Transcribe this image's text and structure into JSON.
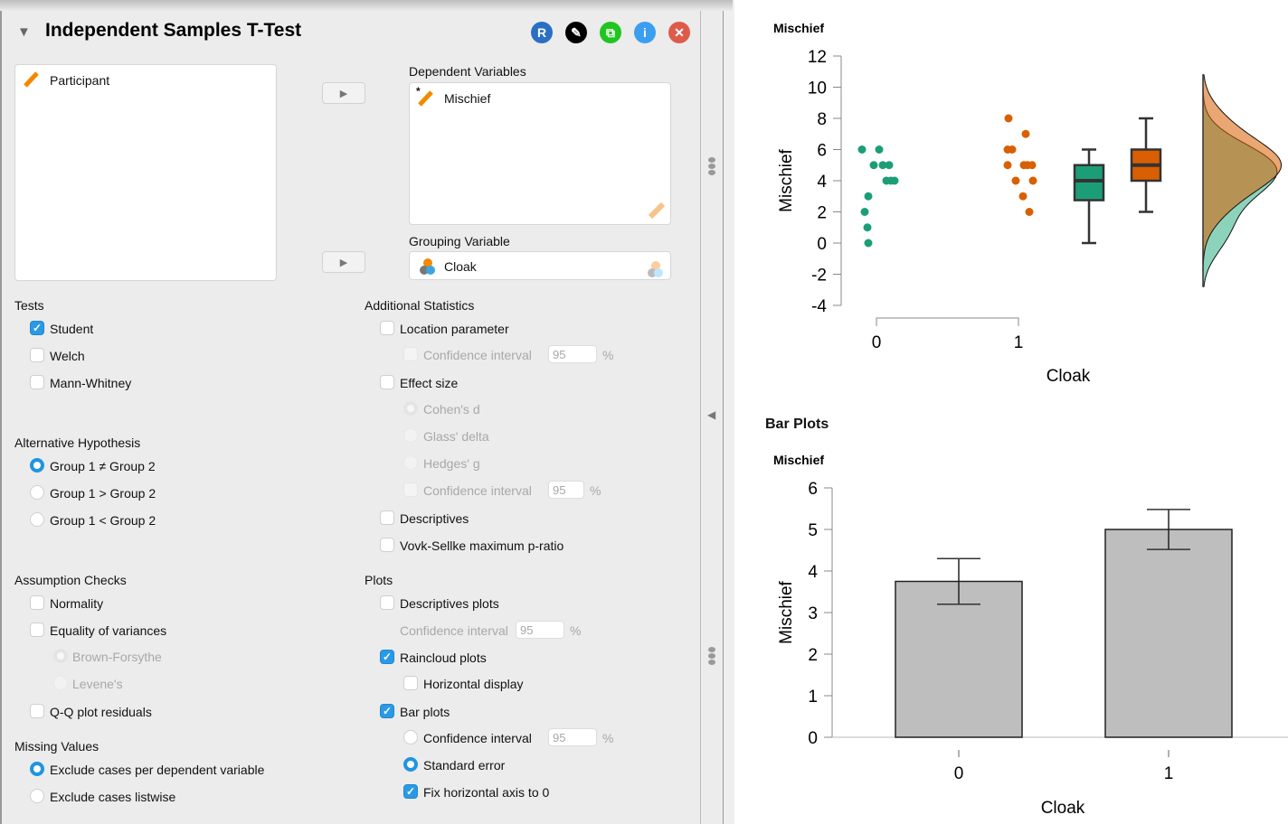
{
  "header": {
    "title": "Independent Samples T-Test",
    "buttons": [
      {
        "name": "r-syntax-button",
        "glyph": "R",
        "color": "#2a6fc4"
      },
      {
        "name": "edit-title-button",
        "glyph": "✎",
        "color": "#000000"
      },
      {
        "name": "duplicate-button",
        "glyph": "⧉",
        "color": "#20c520"
      },
      {
        "name": "info-button",
        "glyph": "i",
        "color": "#3b9ef0"
      },
      {
        "name": "close-button",
        "glyph": "✕",
        "color": "#de5b4a"
      }
    ]
  },
  "variables": {
    "available": [
      {
        "label": "Participant",
        "type": "scale"
      }
    ],
    "dependent_label": "Dependent Variables",
    "dependent": [
      {
        "label": "Mischief",
        "type": "scale"
      }
    ],
    "grouping_label": "Grouping Variable",
    "grouping": {
      "label": "Cloak",
      "type": "nominal"
    }
  },
  "tests": {
    "title": "Tests",
    "items": [
      {
        "label": "Student",
        "checked": true
      },
      {
        "label": "Welch",
        "checked": false
      },
      {
        "label": "Mann-Whitney",
        "checked": false
      }
    ]
  },
  "alt_hypothesis": {
    "title": "Alternative Hypothesis",
    "options": [
      "Group 1 ≠ Group 2",
      "Group 1 > Group 2",
      "Group 1 < Group 2"
    ],
    "selected": 0
  },
  "assumption_checks": {
    "title": "Assumption Checks",
    "normality": "Normality",
    "equality": "Equality of variances",
    "brown": "Brown-Forsythe",
    "levene": "Levene's",
    "qq": "Q-Q plot residuals"
  },
  "missing_values": {
    "title": "Missing Values",
    "options": [
      "Exclude cases per dependent variable",
      "Exclude cases listwise"
    ],
    "selected": 0
  },
  "additional": {
    "title": "Additional Statistics",
    "location": "Location parameter",
    "ci_label": "Confidence interval",
    "ci_value": "95",
    "pct": "%",
    "effect_size": "Effect size",
    "cohens": "Cohen's d",
    "glass": "Glass' delta",
    "hedges": "Hedges' g",
    "descriptives": "Descriptives",
    "vovk": "Vovk-Sellke maximum p-ratio"
  },
  "plots": {
    "title": "Plots",
    "descriptives_plots": "Descriptives plots",
    "ci_label": "Confidence interval",
    "ci_value": "95",
    "pct": "%",
    "raincloud": "Raincloud plots",
    "horizontal": "Horizontal display",
    "bar_plots": "Bar plots",
    "bar_ci": "Confidence interval",
    "std_error": "Standard error",
    "fix_axis": "Fix horizontal axis to 0"
  },
  "results": {
    "bar_plots_heading": "Bar Plots"
  },
  "colors": {
    "group0": "#1b9e77",
    "group1": "#d95f02",
    "bar_fill": "#bebebe",
    "accent": "#2b9ae6"
  },
  "chart_data": [
    {
      "type": "scatter",
      "subtype": "raincloud",
      "title": "Mischief",
      "xlabel": "Cloak",
      "ylabel": "Mischief",
      "categories": [
        "0",
        "1"
      ],
      "yticks": [
        -4,
        -2,
        0,
        2,
        4,
        6,
        8,
        10,
        12
      ],
      "ylim": [
        -4,
        12
      ],
      "series": [
        {
          "name": "0",
          "points": [
            0,
            1,
            2,
            3,
            4,
            4,
            4,
            5,
            5,
            5,
            6,
            6
          ],
          "box": {
            "min": 0,
            "q1": 2.75,
            "median": 4,
            "q3": 5,
            "max": 6
          }
        },
        {
          "name": "1",
          "points": [
            2,
            3,
            4,
            4,
            5,
            5,
            5,
            5,
            6,
            6,
            7,
            8
          ],
          "box": {
            "min": 2,
            "q1": 4,
            "median": 5,
            "q3": 6,
            "max": 8
          }
        }
      ]
    },
    {
      "type": "bar",
      "title": "Mischief",
      "xlabel": "Cloak",
      "ylabel": "Mischief",
      "categories": [
        "0",
        "1"
      ],
      "values": [
        3.75,
        5.0
      ],
      "error_low": [
        3.2,
        4.52
      ],
      "error_high": [
        4.3,
        5.48
      ],
      "yticks": [
        0,
        1,
        2,
        3,
        4,
        5,
        6
      ],
      "ylim": [
        0,
        6
      ]
    }
  ]
}
